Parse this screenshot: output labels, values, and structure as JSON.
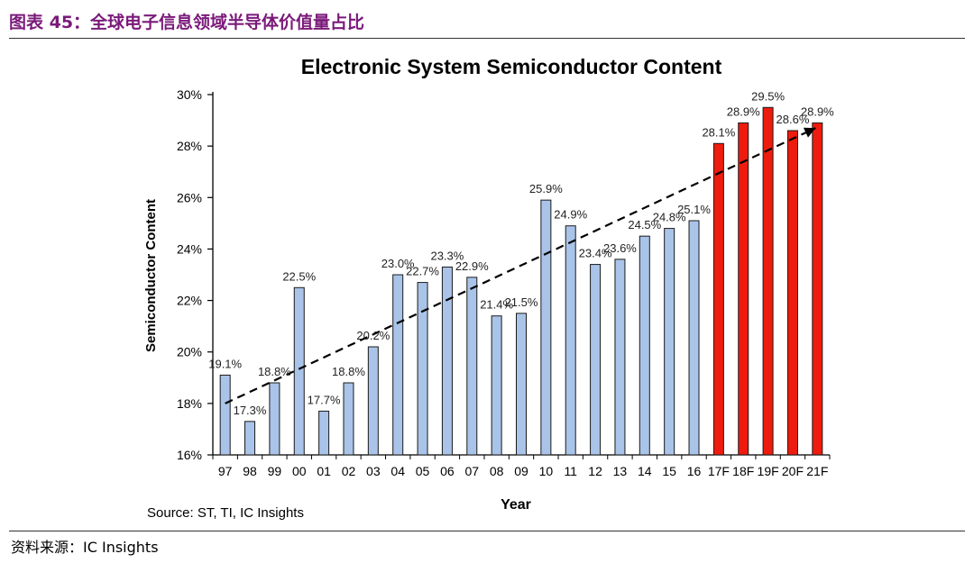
{
  "figure": {
    "caption": "图表 45：全球电子信息领域半导体价值量占比",
    "source_note": "资料来源：IC Insights"
  },
  "chart_data": {
    "type": "bar",
    "title": "Electronic System Semiconductor Content",
    "xlabel": "Year",
    "ylabel": "Semiconductor Content",
    "ylim": [
      16,
      30
    ],
    "yticks": [
      "16%",
      "18%",
      "20%",
      "22%",
      "24%",
      "26%",
      "28%",
      "30%"
    ],
    "source": "Source: ST, TI, IC Insights",
    "categories": [
      "97",
      "98",
      "99",
      "00",
      "01",
      "02",
      "03",
      "04",
      "05",
      "06",
      "07",
      "08",
      "09",
      "10",
      "11",
      "12",
      "13",
      "14",
      "15",
      "16",
      "17F",
      "18F",
      "19F",
      "20F",
      "21F"
    ],
    "values": [
      19.1,
      17.3,
      18.8,
      22.5,
      17.7,
      18.8,
      20.2,
      23.0,
      22.7,
      23.3,
      22.9,
      21.4,
      21.5,
      25.9,
      24.9,
      23.4,
      23.6,
      24.5,
      24.8,
      25.1,
      28.1,
      28.9,
      29.5,
      28.6,
      28.9
    ],
    "labels": [
      "19.1%",
      "17.3%",
      "18.8%",
      "22.5%",
      "17.7%",
      "18.8%",
      "20.2%",
      "23.0%",
      "22.7%",
      "23.3%",
      "22.9%",
      "21.4%",
      "21.5%",
      "25.9%",
      "24.9%",
      "23.4%",
      "23.6%",
      "24.5%",
      "24.8%",
      "25.1%",
      "28.1%",
      "28.9%",
      "29.5%",
      "28.6%",
      "28.9%"
    ],
    "forecast": [
      false,
      false,
      false,
      false,
      false,
      false,
      false,
      false,
      false,
      false,
      false,
      false,
      false,
      false,
      false,
      false,
      false,
      false,
      false,
      false,
      true,
      true,
      true,
      true,
      true
    ],
    "trendline": {
      "style": "dashed-arrow",
      "start": 18.0,
      "end": 28.7
    },
    "colors": {
      "actual": "#a9c4e8",
      "forecast": "#ee1c0e",
      "bar_edge": "#1a1a1a"
    },
    "grid": false,
    "legend": "none"
  }
}
